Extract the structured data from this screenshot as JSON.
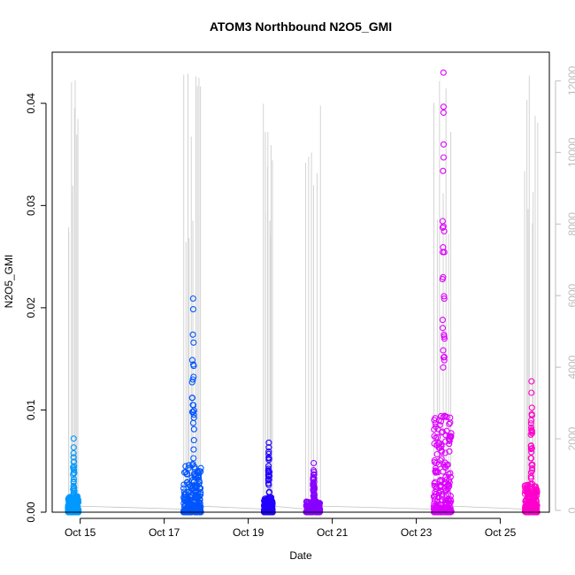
{
  "chart_data": {
    "type": "scatter",
    "title": "ATOM3 Northbound N2O5_GMI",
    "xlabel": "Date",
    "ylabel": "N2O5_GMI",
    "x_ticks": [
      "Oct 15",
      "Oct 17",
      "Oct 19",
      "Oct 21",
      "Oct 23",
      "Oct 25"
    ],
    "xlim": [
      "2017-10-14 08:00",
      "2017-10-26 04:00"
    ],
    "ylim": [
      0,
      0.045
    ],
    "y_ticks": [
      0.0,
      0.01,
      0.02,
      0.03,
      0.04
    ],
    "y_tick_labels": [
      "0.00",
      "0.01",
      "0.02",
      "0.03",
      "0.04"
    ],
    "y2_label": "",
    "y2_ticks": [
      0,
      2000,
      4000,
      6000,
      8000,
      10000,
      12000
    ],
    "y2lim": [
      -50,
      12800
    ],
    "grid": false,
    "legend": "none",
    "altitude_color": "#d3d3d3",
    "track_color": "#c0c0c0",
    "series": [
      {
        "date": "2017-10-14",
        "color": "#0099ff",
        "t_start": "2017-10-14 17:00",
        "t_end": "2017-10-14 23:00",
        "y_min": 0.0,
        "y_max": 0.0072
      },
      {
        "date": "2017-10-17",
        "color": "#0055ff",
        "t_start": "2017-10-17 11:00",
        "t_end": "2017-10-17 21:00",
        "y_min": 0.0,
        "y_max": 0.0209
      },
      {
        "date": "2017-10-19",
        "color": "#2200ff",
        "t_start": "2017-10-19 09:00",
        "t_end": "2017-10-19 14:00",
        "y_min": 0.0,
        "y_max": 0.0068
      },
      {
        "date": "2017-10-20",
        "color": "#8800ff",
        "t_start": "2017-10-20 09:00",
        "t_end": "2017-10-20 17:00",
        "y_min": 0.0,
        "y_max": 0.0048
      },
      {
        "date": "2017-10-23",
        "color": "#dd00ff",
        "t_start": "2017-10-23 10:00",
        "t_end": "2017-10-23 20:00",
        "y_min": 0.0,
        "y_max": 0.043
      },
      {
        "date": "2017-10-25",
        "color": "#ff00cc",
        "t_start": "2017-10-25 14:00",
        "t_end": "2017-10-25 21:00",
        "y_min": 0.0,
        "y_max": 0.0128
      }
    ]
  }
}
